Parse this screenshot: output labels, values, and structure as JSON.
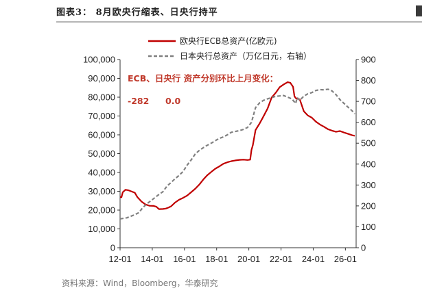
{
  "figure_title": "图表3： 8月欧央行缩表、日央行持平",
  "source": "资料来源：Wind，Bloomberg，华泰研究",
  "chart_data": {
    "type": "line",
    "title": "",
    "xlabel": "",
    "ylabel": "",
    "x_ticks": [
      "12-01",
      "14-01",
      "16-01",
      "18-01",
      "20-01",
      "22-01",
      "24-01",
      "26-01"
    ],
    "x_range": [
      "2012-01",
      "2026-09"
    ],
    "y_left_range": [
      0,
      100000
    ],
    "y_left_ticks": [
      "0",
      "10,000",
      "20,000",
      "30,000",
      "40,000",
      "50,000",
      "60,000",
      "70,000",
      "80,000",
      "90,000",
      "100,000"
    ],
    "y_right_range": [
      0,
      900
    ],
    "y_right_ticks": [
      "0",
      "100",
      "200",
      "300",
      "400",
      "500",
      "600",
      "700",
      "800",
      "900"
    ],
    "grid": false,
    "legend_position": "top-center",
    "annotation": {
      "heading": "ECB、日央行 资产分别环比上月变化：",
      "values": [
        "-282",
        "0.0"
      ]
    },
    "series": [
      {
        "name": "欧央行ECB总资产(亿欧元)",
        "axis": "left",
        "color": "#c00000",
        "style": "solid",
        "points": [
          [
            "2012-01",
            27000
          ],
          [
            "2012-02",
            26800
          ],
          [
            "2012-03",
            29500
          ],
          [
            "2012-05",
            30800
          ],
          [
            "2012-07",
            30600
          ],
          [
            "2012-10",
            29800
          ],
          [
            "2012-12",
            29200
          ],
          [
            "2013-02",
            26800
          ],
          [
            "2013-05",
            24500
          ],
          [
            "2013-08",
            23000
          ],
          [
            "2013-11",
            22300
          ],
          [
            "2014-02",
            22200
          ],
          [
            "2014-04",
            21800
          ],
          [
            "2014-06",
            20500
          ],
          [
            "2014-09",
            20600
          ],
          [
            "2014-11",
            20800
          ],
          [
            "2015-01",
            21300
          ],
          [
            "2015-03",
            22000
          ],
          [
            "2015-06",
            24000
          ],
          [
            "2015-09",
            25500
          ],
          [
            "2015-12",
            26500
          ],
          [
            "2016-03",
            27700
          ],
          [
            "2016-06",
            29500
          ],
          [
            "2016-09",
            31300
          ],
          [
            "2016-12",
            33500
          ],
          [
            "2017-03",
            36200
          ],
          [
            "2017-06",
            38500
          ],
          [
            "2017-09",
            40300
          ],
          [
            "2017-12",
            42000
          ],
          [
            "2018-03",
            43200
          ],
          [
            "2018-06",
            44600
          ],
          [
            "2018-09",
            45400
          ],
          [
            "2018-12",
            46000
          ],
          [
            "2019-03",
            46400
          ],
          [
            "2019-06",
            46700
          ],
          [
            "2019-09",
            46800
          ],
          [
            "2019-12",
            46600
          ],
          [
            "2020-02",
            46800
          ],
          [
            "2020-03",
            52000
          ],
          [
            "2020-04",
            54500
          ],
          [
            "2020-06",
            62500
          ],
          [
            "2020-09",
            66000
          ],
          [
            "2020-12",
            69900
          ],
          [
            "2021-03",
            74000
          ],
          [
            "2021-06",
            79800
          ],
          [
            "2021-09",
            82300
          ],
          [
            "2021-12",
            85300
          ],
          [
            "2022-03",
            86800
          ],
          [
            "2022-06",
            88000
          ],
          [
            "2022-08",
            87600
          ],
          [
            "2022-10",
            85500
          ],
          [
            "2022-11",
            80500
          ],
          [
            "2022-12",
            79500
          ],
          [
            "2023-03",
            78800
          ],
          [
            "2023-06",
            72500
          ],
          [
            "2023-09",
            70300
          ],
          [
            "2023-12",
            69100
          ],
          [
            "2024-03",
            67000
          ],
          [
            "2024-06",
            65500
          ],
          [
            "2024-09",
            64300
          ],
          [
            "2024-12",
            63000
          ],
          [
            "2025-03",
            62200
          ],
          [
            "2025-06",
            61600
          ],
          [
            "2025-09",
            62000
          ],
          [
            "2025-12",
            61200
          ],
          [
            "2026-03",
            60500
          ],
          [
            "2026-06",
            59800
          ],
          [
            "2026-08",
            59500
          ]
        ]
      },
      {
        "name": "日本央行总资产（万亿日元，右轴）",
        "axis": "right",
        "color": "#808080",
        "style": "dashed",
        "points": [
          [
            "2012-01",
            138
          ],
          [
            "2012-06",
            143
          ],
          [
            "2012-12",
            158
          ],
          [
            "2013-03",
            168
          ],
          [
            "2013-06",
            192
          ],
          [
            "2013-09",
            210
          ],
          [
            "2013-12",
            225
          ],
          [
            "2014-03",
            240
          ],
          [
            "2014-06",
            255
          ],
          [
            "2014-09",
            268
          ],
          [
            "2014-12",
            295
          ],
          [
            "2015-03",
            312
          ],
          [
            "2015-06",
            330
          ],
          [
            "2015-09",
            346
          ],
          [
            "2015-12",
            365
          ],
          [
            "2016-03",
            395
          ],
          [
            "2016-06",
            420
          ],
          [
            "2016-09",
            448
          ],
          [
            "2016-12",
            465
          ],
          [
            "2017-03",
            478
          ],
          [
            "2017-06",
            490
          ],
          [
            "2017-09",
            500
          ],
          [
            "2017-12",
            512
          ],
          [
            "2018-03",
            523
          ],
          [
            "2018-06",
            530
          ],
          [
            "2018-09",
            540
          ],
          [
            "2018-12",
            552
          ],
          [
            "2019-03",
            556
          ],
          [
            "2019-06",
            560
          ],
          [
            "2019-09",
            566
          ],
          [
            "2019-12",
            575
          ],
          [
            "2020-03",
            600
          ],
          [
            "2020-06",
            670
          ],
          [
            "2020-09",
            693
          ],
          [
            "2020-12",
            705
          ],
          [
            "2021-03",
            712
          ],
          [
            "2021-06",
            718
          ],
          [
            "2021-09",
            724
          ],
          [
            "2021-12",
            726
          ],
          [
            "2022-03",
            728
          ],
          [
            "2022-06",
            720
          ],
          [
            "2022-09",
            712
          ],
          [
            "2022-12",
            690
          ],
          [
            "2023-01",
            718
          ],
          [
            "2023-03",
            705
          ],
          [
            "2023-06",
            725
          ],
          [
            "2023-09",
            736
          ],
          [
            "2023-12",
            742
          ],
          [
            "2024-03",
            752
          ],
          [
            "2024-06",
            756
          ],
          [
            "2024-09",
            755
          ],
          [
            "2024-12",
            758
          ],
          [
            "2025-03",
            750
          ],
          [
            "2025-06",
            732
          ],
          [
            "2025-09",
            708
          ],
          [
            "2025-12",
            690
          ],
          [
            "2026-03",
            672
          ],
          [
            "2026-06",
            655
          ],
          [
            "2026-08",
            640
          ]
        ]
      }
    ]
  }
}
